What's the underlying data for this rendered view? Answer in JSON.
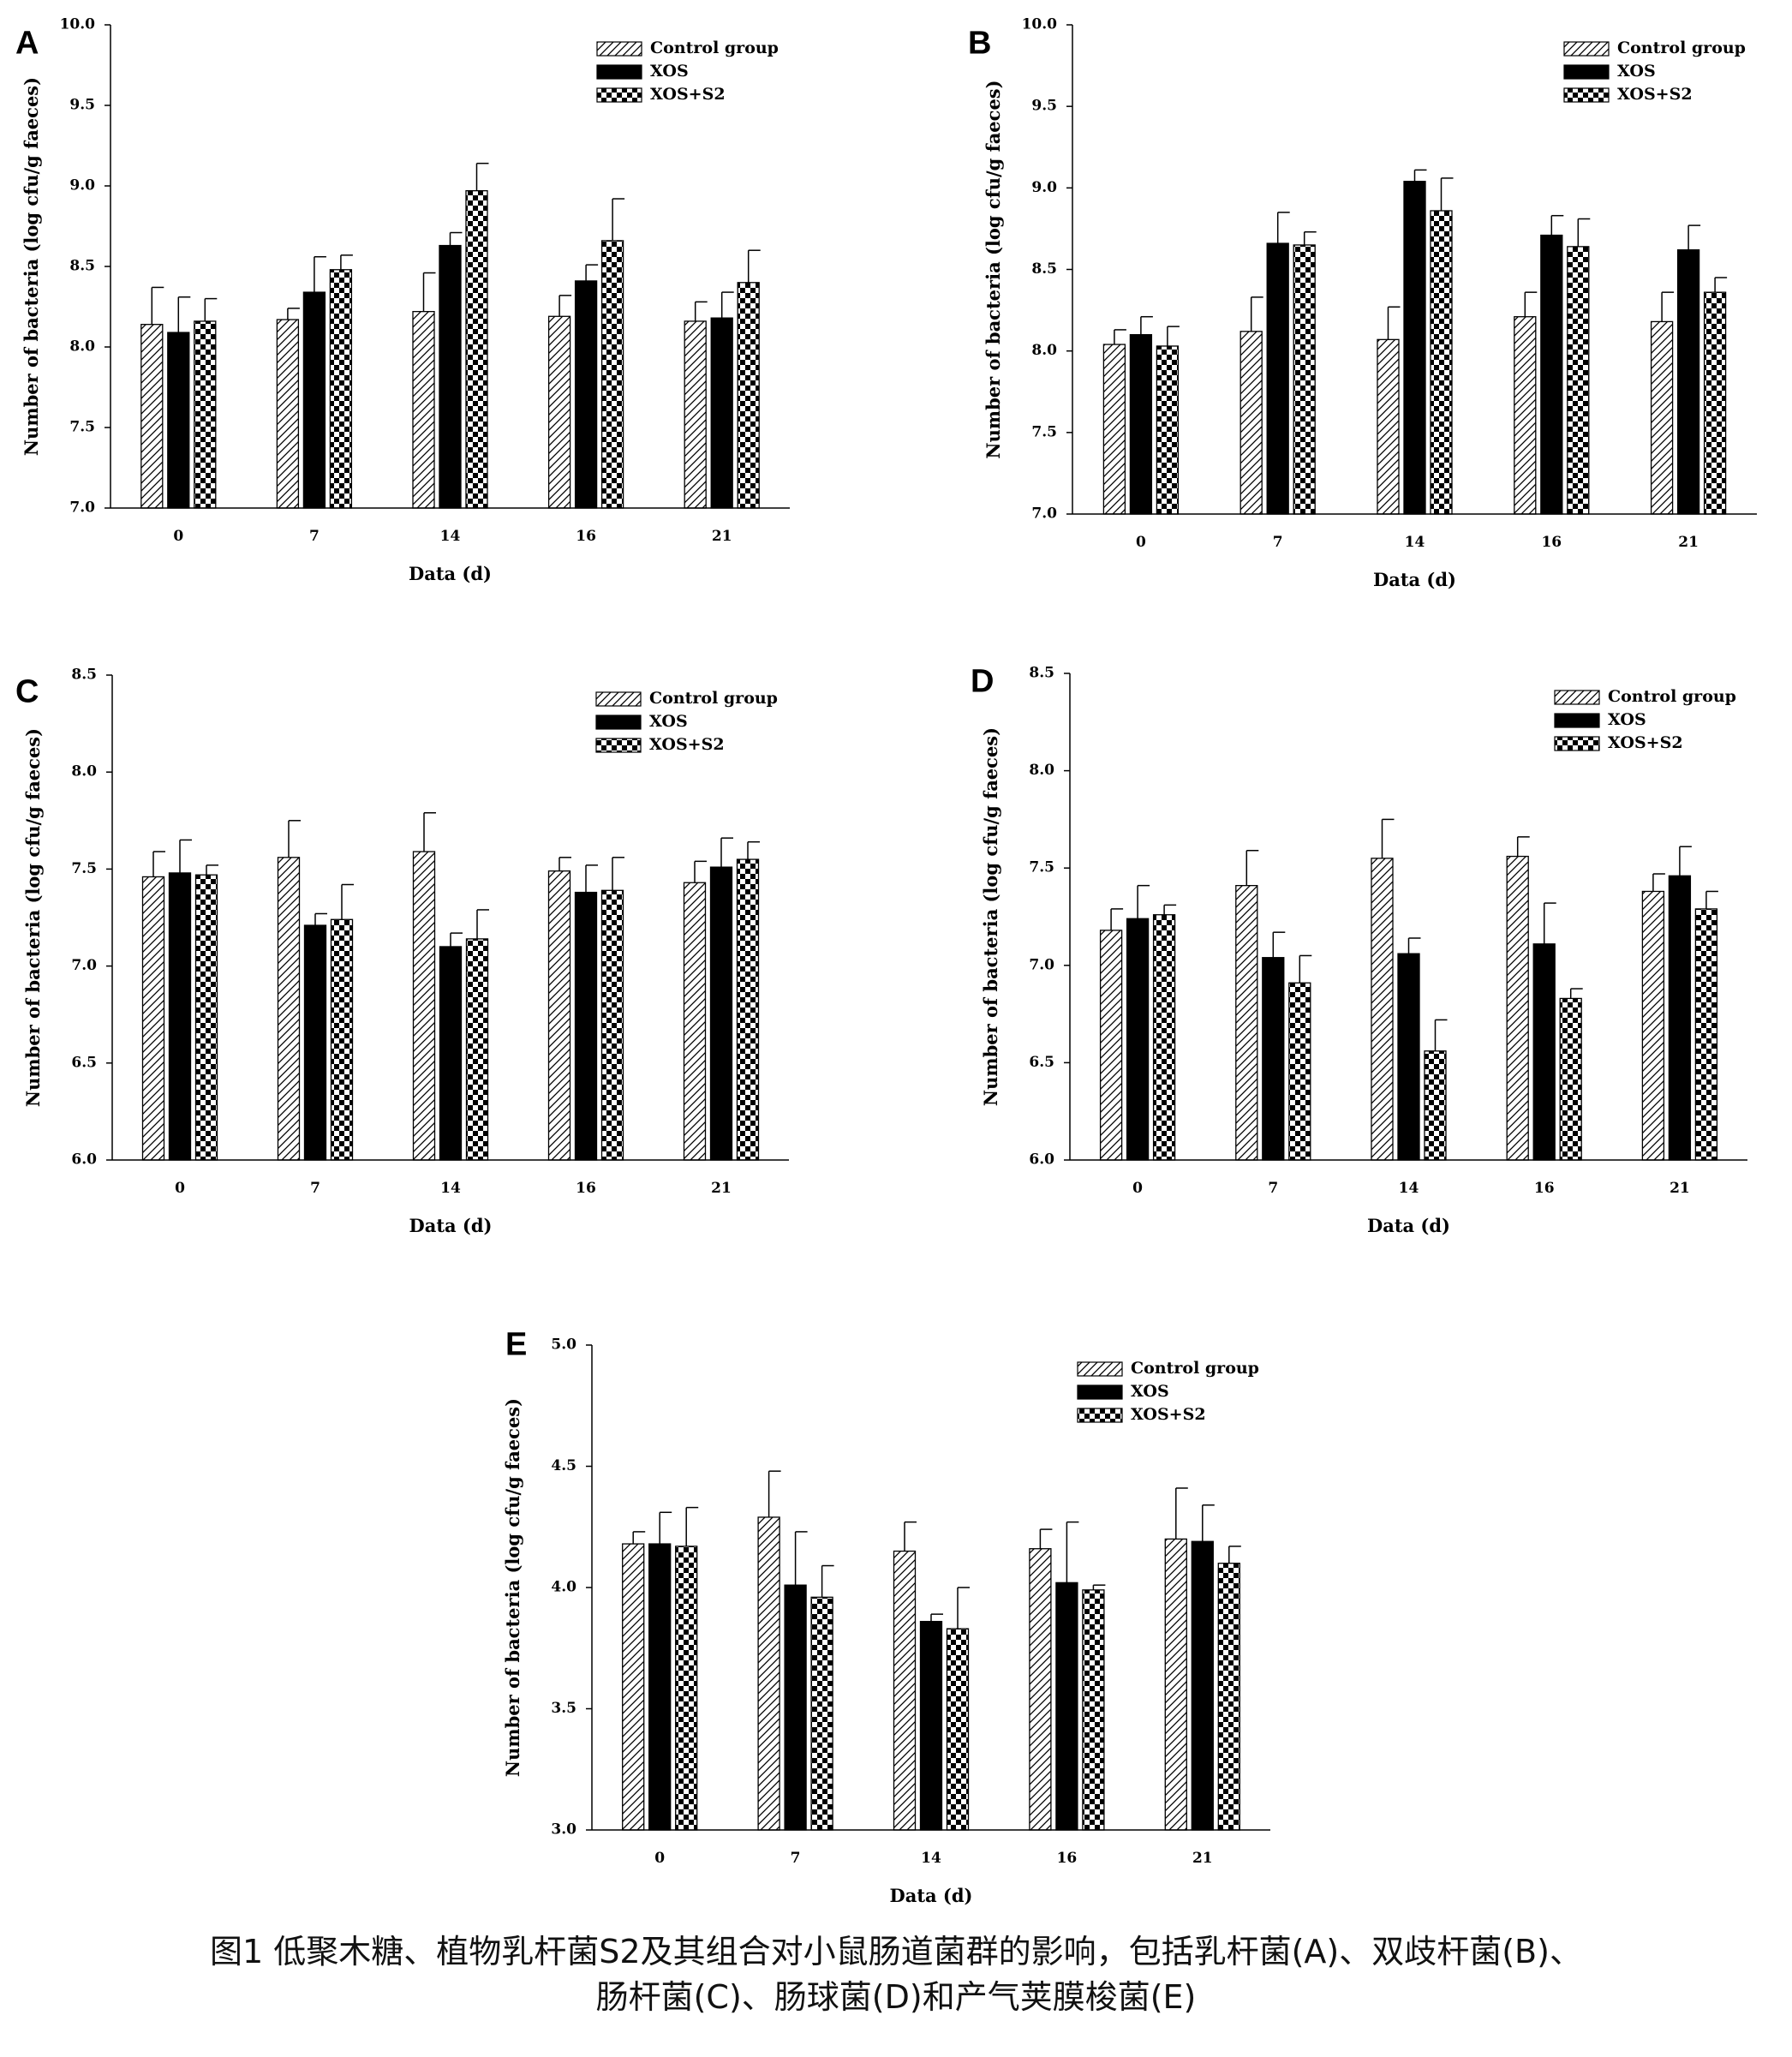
{
  "caption": {
    "line1": "图1 低聚木糖、植物乳杆菌S2及其组合对小鼠肠道菌群的影响，包括乳杆菌(A)、双歧杆菌(B)、",
    "line2": "肠杆菌(C)、肠球菌(D)和产气荚膜梭菌(E)"
  },
  "chart_data": [
    {
      "panel": "A",
      "type": "bar",
      "categories": [
        "0",
        "7",
        "14",
        "16",
        "21"
      ],
      "xlabel": "Data (d)",
      "ylabel": "Number of bacteria (log cfu/g faeces)",
      "ylim": [
        7.0,
        10.0
      ],
      "yticks": [
        "7.0",
        "7.5",
        "8.0",
        "8.5",
        "9.0",
        "9.5",
        "10.0"
      ],
      "legend": "top-right",
      "grid": false,
      "series": [
        {
          "name": "Control group",
          "pattern": "hatch",
          "values": [
            8.14,
            8.17,
            8.22,
            8.19,
            8.16
          ],
          "errors": [
            0.23,
            0.07,
            0.24,
            0.13,
            0.12
          ]
        },
        {
          "name": "XOS",
          "pattern": "solid",
          "values": [
            8.09,
            8.34,
            8.63,
            8.41,
            8.18
          ],
          "errors": [
            0.22,
            0.22,
            0.08,
            0.1,
            0.16
          ]
        },
        {
          "name": "XOS+S2",
          "pattern": "checker",
          "values": [
            8.16,
            8.48,
            8.97,
            8.66,
            8.4
          ],
          "errors": [
            0.14,
            0.09,
            0.17,
            0.26,
            0.2
          ]
        }
      ]
    },
    {
      "panel": "B",
      "type": "bar",
      "categories": [
        "0",
        "7",
        "14",
        "16",
        "21"
      ],
      "xlabel": "Data (d)",
      "ylabel": "Number of bacteria (log cfu/g faeces)",
      "ylim": [
        7.0,
        10.0
      ],
      "yticks": [
        "7.0",
        "7.5",
        "8.0",
        "8.5",
        "9.0",
        "9.5",
        "10.0"
      ],
      "legend": "top-right",
      "grid": false,
      "series": [
        {
          "name": "Control group",
          "pattern": "hatch",
          "values": [
            8.04,
            8.12,
            8.07,
            8.21,
            8.18
          ],
          "errors": [
            0.09,
            0.21,
            0.2,
            0.15,
            0.18
          ]
        },
        {
          "name": "XOS",
          "pattern": "solid",
          "values": [
            8.1,
            8.66,
            9.04,
            8.71,
            8.62
          ],
          "errors": [
            0.11,
            0.19,
            0.07,
            0.12,
            0.15
          ]
        },
        {
          "name": "XOS+S2",
          "pattern": "checker",
          "values": [
            8.03,
            8.65,
            8.86,
            8.64,
            8.36
          ],
          "errors": [
            0.12,
            0.08,
            0.2,
            0.17,
            0.09
          ]
        }
      ]
    },
    {
      "panel": "C",
      "type": "bar",
      "categories": [
        "0",
        "7",
        "14",
        "16",
        "21"
      ],
      "xlabel": "Data (d)",
      "ylabel": "Number of bacteria (log cfu/g faeces)",
      "ylim": [
        6.0,
        8.5
      ],
      "yticks": [
        "6.0",
        "6.5",
        "7.0",
        "7.5",
        "8.0",
        "8.5"
      ],
      "legend": "top-right",
      "grid": false,
      "series": [
        {
          "name": "Control group",
          "pattern": "hatch",
          "values": [
            7.46,
            7.56,
            7.59,
            7.49,
            7.43
          ],
          "errors": [
            0.13,
            0.19,
            0.2,
            0.07,
            0.11
          ]
        },
        {
          "name": "XOS",
          "pattern": "solid",
          "values": [
            7.48,
            7.21,
            7.1,
            7.38,
            7.51
          ],
          "errors": [
            0.17,
            0.06,
            0.07,
            0.14,
            0.15
          ]
        },
        {
          "name": "XOS+S2",
          "pattern": "checker",
          "values": [
            7.47,
            7.24,
            7.14,
            7.39,
            7.55
          ],
          "errors": [
            0.05,
            0.18,
            0.15,
            0.17,
            0.09
          ]
        }
      ]
    },
    {
      "panel": "D",
      "type": "bar",
      "categories": [
        "0",
        "7",
        "14",
        "16",
        "21"
      ],
      "xlabel": "Data (d)",
      "ylabel": "Number of bacteria (log cfu/g faeces)",
      "ylim": [
        6.0,
        8.5
      ],
      "yticks": [
        "6.0",
        "6.5",
        "7.0",
        "7.5",
        "8.0",
        "8.5"
      ],
      "legend": "top-right",
      "grid": false,
      "series": [
        {
          "name": "Control group",
          "pattern": "hatch",
          "values": [
            7.18,
            7.41,
            7.55,
            7.56,
            7.38
          ],
          "errors": [
            0.11,
            0.18,
            0.2,
            0.1,
            0.09
          ]
        },
        {
          "name": "XOS",
          "pattern": "solid",
          "values": [
            7.24,
            7.04,
            7.06,
            7.11,
            7.46
          ],
          "errors": [
            0.17,
            0.13,
            0.08,
            0.21,
            0.15
          ]
        },
        {
          "name": "XOS+S2",
          "pattern": "checker",
          "values": [
            7.26,
            6.91,
            6.56,
            6.83,
            7.29
          ],
          "errors": [
            0.05,
            0.14,
            0.16,
            0.05,
            0.09
          ]
        }
      ]
    },
    {
      "panel": "E",
      "type": "bar",
      "categories": [
        "0",
        "7",
        "14",
        "16",
        "21"
      ],
      "xlabel": "Data (d)",
      "ylabel": "Number of bacteria (log cfu/g faeces)",
      "ylim": [
        3.0,
        5.0
      ],
      "yticks": [
        "3.0",
        "3.5",
        "4.0",
        "4.5",
        "5.0"
      ],
      "legend": "top-right",
      "grid": false,
      "series": [
        {
          "name": "Control group",
          "pattern": "hatch",
          "values": [
            4.18,
            4.29,
            4.15,
            4.16,
            4.2
          ],
          "errors": [
            0.05,
            0.19,
            0.12,
            0.08,
            0.21
          ]
        },
        {
          "name": "XOS",
          "pattern": "solid",
          "values": [
            4.18,
            4.01,
            3.86,
            4.02,
            4.19
          ],
          "errors": [
            0.13,
            0.22,
            0.03,
            0.25,
            0.15
          ]
        },
        {
          "name": "XOS+S2",
          "pattern": "checker",
          "values": [
            4.17,
            3.96,
            3.83,
            3.99,
            4.1
          ],
          "errors": [
            0.16,
            0.13,
            0.17,
            0.02,
            0.07
          ]
        }
      ]
    }
  ]
}
